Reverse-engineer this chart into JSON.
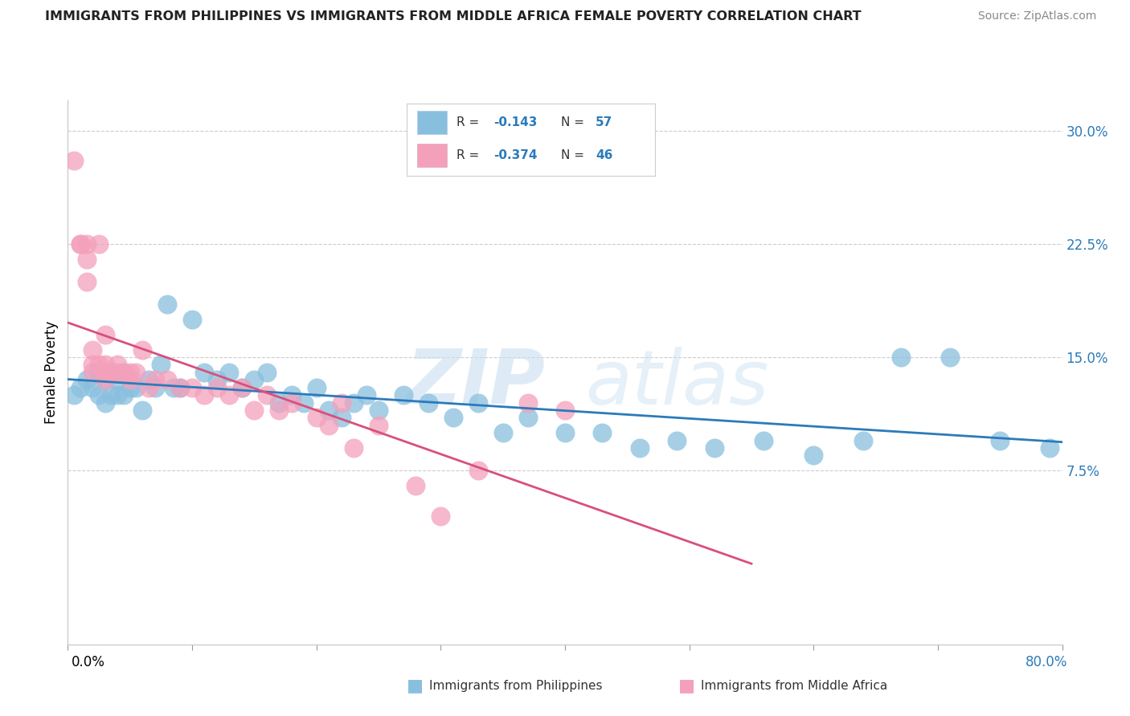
{
  "title": "IMMIGRANTS FROM PHILIPPINES VS IMMIGRANTS FROM MIDDLE AFRICA FEMALE POVERTY CORRELATION CHART",
  "source": "Source: ZipAtlas.com",
  "ylabel": "Female Poverty",
  "xlim": [
    0.0,
    0.8
  ],
  "ylim": [
    -0.04,
    0.32
  ],
  "yticks": [
    0.075,
    0.15,
    0.225,
    0.3
  ],
  "ytick_labels": [
    "7.5%",
    "15.0%",
    "22.5%",
    "30.0%"
  ],
  "xtick_labels": [
    "0.0%",
    "80.0%"
  ],
  "blue_color": "#89bfde",
  "pink_color": "#f4a0bb",
  "blue_line_color": "#2b7bba",
  "pink_line_color": "#d9507a",
  "accent_color": "#2b7bba",
  "R_blue": -0.143,
  "N_blue": 57,
  "R_pink": -0.374,
  "N_pink": 46,
  "watermark_zip": "ZIP",
  "watermark_atlas": "atlas",
  "blue_scatter_x": [
    0.005,
    0.01,
    0.015,
    0.02,
    0.025,
    0.025,
    0.03,
    0.03,
    0.035,
    0.035,
    0.04,
    0.04,
    0.045,
    0.045,
    0.05,
    0.055,
    0.06,
    0.065,
    0.07,
    0.075,
    0.08,
    0.085,
    0.09,
    0.1,
    0.11,
    0.12,
    0.13,
    0.14,
    0.15,
    0.16,
    0.17,
    0.18,
    0.19,
    0.2,
    0.21,
    0.22,
    0.23,
    0.24,
    0.25,
    0.27,
    0.29,
    0.31,
    0.33,
    0.35,
    0.37,
    0.4,
    0.43,
    0.46,
    0.49,
    0.52,
    0.56,
    0.6,
    0.64,
    0.67,
    0.71,
    0.75,
    0.79
  ],
  "blue_scatter_y": [
    0.125,
    0.13,
    0.135,
    0.13,
    0.125,
    0.14,
    0.12,
    0.135,
    0.125,
    0.14,
    0.125,
    0.135,
    0.125,
    0.14,
    0.13,
    0.13,
    0.115,
    0.135,
    0.13,
    0.145,
    0.185,
    0.13,
    0.13,
    0.175,
    0.14,
    0.135,
    0.14,
    0.13,
    0.135,
    0.14,
    0.12,
    0.125,
    0.12,
    0.13,
    0.115,
    0.11,
    0.12,
    0.125,
    0.115,
    0.125,
    0.12,
    0.11,
    0.12,
    0.1,
    0.11,
    0.1,
    0.1,
    0.09,
    0.095,
    0.09,
    0.095,
    0.085,
    0.095,
    0.15,
    0.15,
    0.095,
    0.09
  ],
  "pink_scatter_x": [
    0.005,
    0.01,
    0.01,
    0.015,
    0.015,
    0.015,
    0.02,
    0.02,
    0.02,
    0.025,
    0.025,
    0.03,
    0.03,
    0.03,
    0.03,
    0.035,
    0.04,
    0.04,
    0.045,
    0.05,
    0.05,
    0.055,
    0.06,
    0.065,
    0.07,
    0.08,
    0.09,
    0.1,
    0.11,
    0.12,
    0.13,
    0.14,
    0.15,
    0.16,
    0.17,
    0.18,
    0.2,
    0.21,
    0.22,
    0.23,
    0.25,
    0.28,
    0.3,
    0.33,
    0.37,
    0.4
  ],
  "pink_scatter_y": [
    0.28,
    0.225,
    0.225,
    0.225,
    0.215,
    0.2,
    0.155,
    0.145,
    0.14,
    0.225,
    0.145,
    0.145,
    0.14,
    0.135,
    0.165,
    0.14,
    0.145,
    0.14,
    0.14,
    0.135,
    0.14,
    0.14,
    0.155,
    0.13,
    0.135,
    0.135,
    0.13,
    0.13,
    0.125,
    0.13,
    0.125,
    0.13,
    0.115,
    0.125,
    0.115,
    0.12,
    0.11,
    0.105,
    0.12,
    0.09,
    0.105,
    0.065,
    0.045,
    0.075,
    0.12,
    0.115
  ]
}
